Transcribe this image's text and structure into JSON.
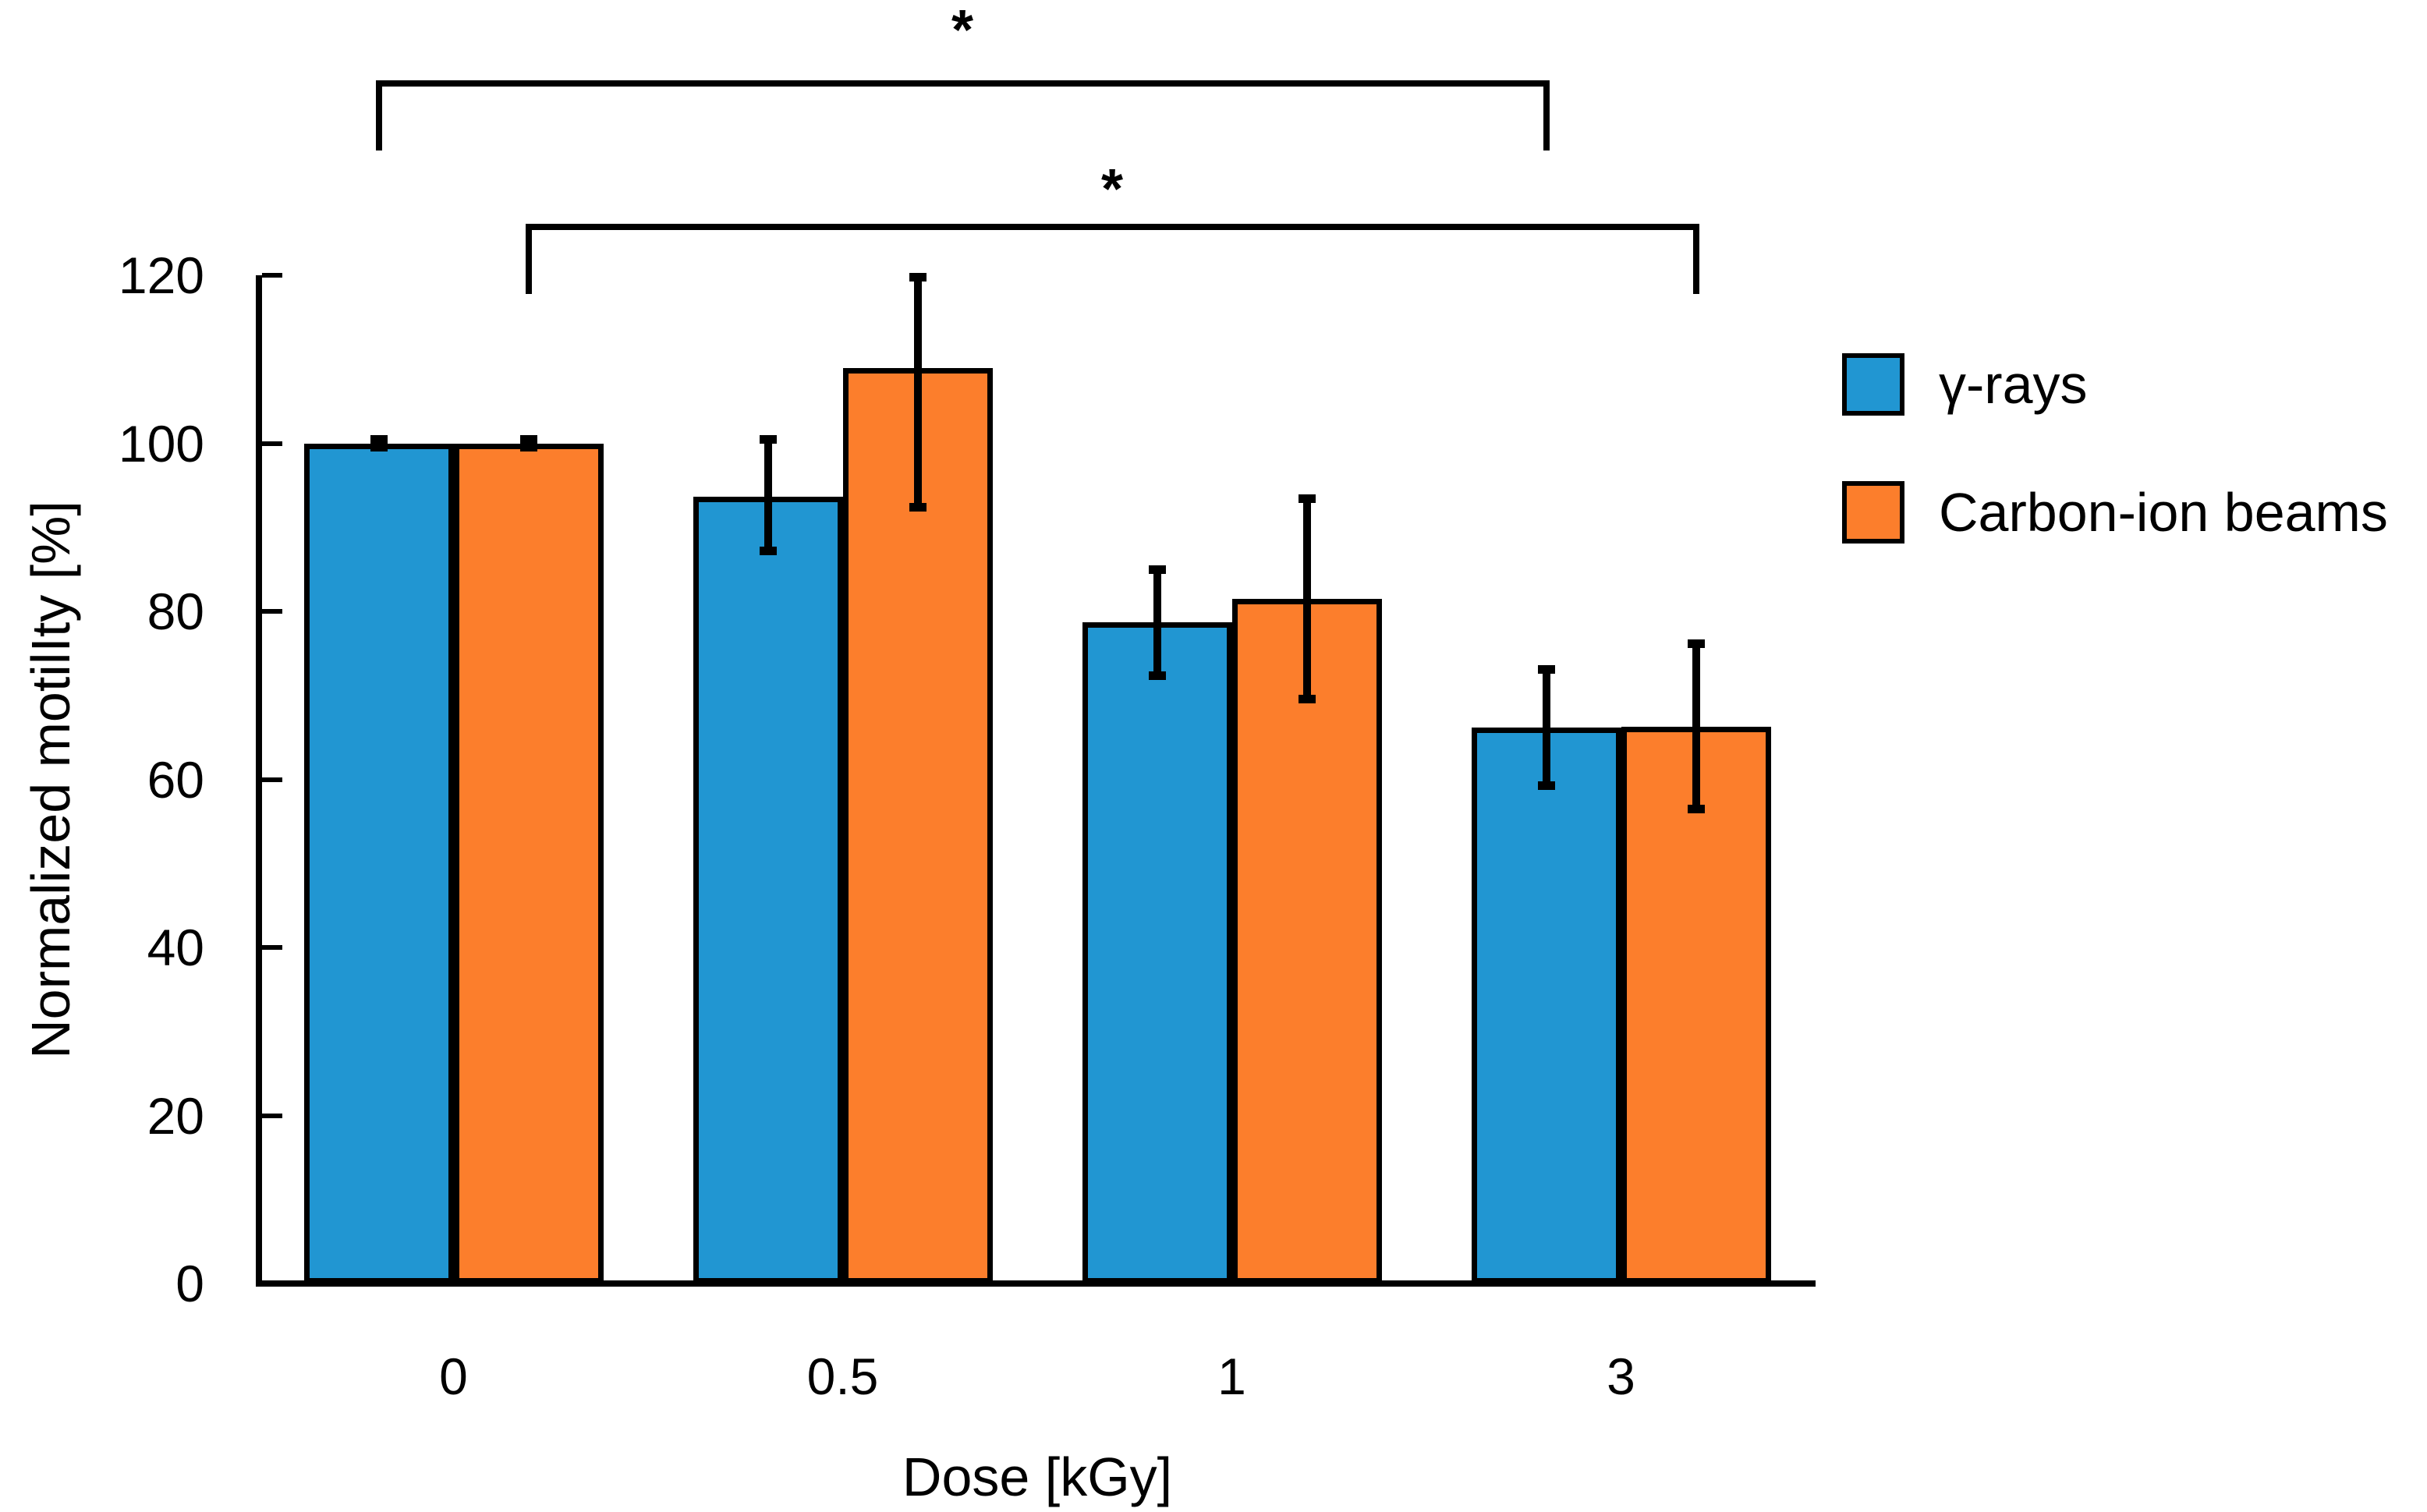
{
  "figure": {
    "background_color": "#ffffff",
    "text_color": "#000000"
  },
  "chart_data": {
    "type": "bar",
    "title": "",
    "xlabel": "Dose [kGy]",
    "ylabel": "Normalized motilIty [%]",
    "categories": [
      "0",
      "0.5",
      "1",
      "3"
    ],
    "y_ticks": [
      0,
      20,
      40,
      60,
      80,
      100,
      120
    ],
    "ylim": [
      0,
      120
    ],
    "grid": false,
    "legend_position": "right",
    "bar_edge_color": "#000000",
    "error_bar_color": "#000000",
    "series": [
      {
        "name": "γ-rays",
        "color": "#2196D2",
        "values": [
          100,
          93.6,
          78.7,
          66.2
        ],
        "err_up": [
          0.5,
          6.9,
          6.3,
          6.9
        ],
        "err_down": [
          0.5,
          6.5,
          6.4,
          7.0
        ]
      },
      {
        "name": "Carbon-ion beams",
        "color": "#FC7E2C",
        "values": [
          100,
          109.0,
          81.5,
          66.3
        ],
        "err_up": [
          0.5,
          10.8,
          12.0,
          9.9
        ],
        "err_down": [
          0.5,
          16.7,
          12.0,
          9.9
        ]
      }
    ],
    "significance": [
      {
        "label": "*",
        "from_category": "0",
        "from_series": "γ-rays",
        "to_category": "3",
        "to_series": "γ-rays"
      },
      {
        "label": "*",
        "from_category": "0",
        "from_series": "Carbon-ion beams",
        "to_category": "3",
        "to_series": "Carbon-ion beams"
      }
    ]
  }
}
